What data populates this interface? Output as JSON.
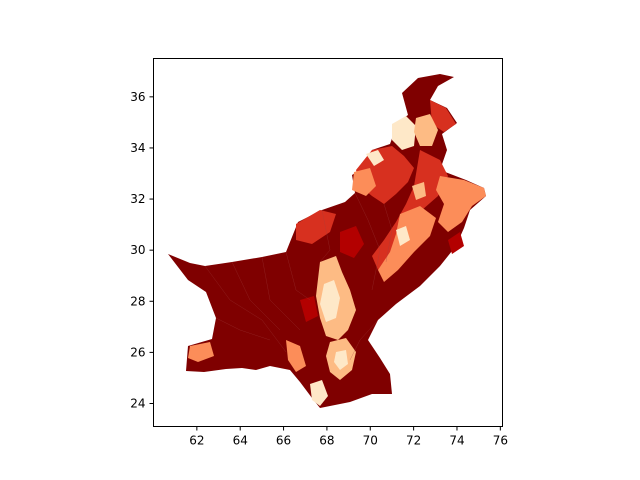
{
  "figure": {
    "type": "choropleth",
    "xlim": [
      60.0,
      76.1
    ],
    "ylim": [
      23.1,
      37.5
    ],
    "x_ticks": [
      62,
      64,
      66,
      68,
      70,
      72,
      74,
      76
    ],
    "y_ticks": [
      24,
      26,
      28,
      30,
      32,
      34,
      36
    ],
    "x_tick_labels": [
      "62",
      "64",
      "66",
      "68",
      "70",
      "72",
      "74",
      "76"
    ],
    "y_tick_labels": [
      "24",
      "26",
      "28",
      "30",
      "32",
      "34",
      "36"
    ],
    "colormap": "OrRd",
    "colors": {
      "darkest": "#7f0000",
      "dark": "#b30000",
      "mid": "#d7301f",
      "light": "#fc8d59",
      "lighter": "#fdbb84",
      "lightest": "#fee8c8"
    }
  }
}
